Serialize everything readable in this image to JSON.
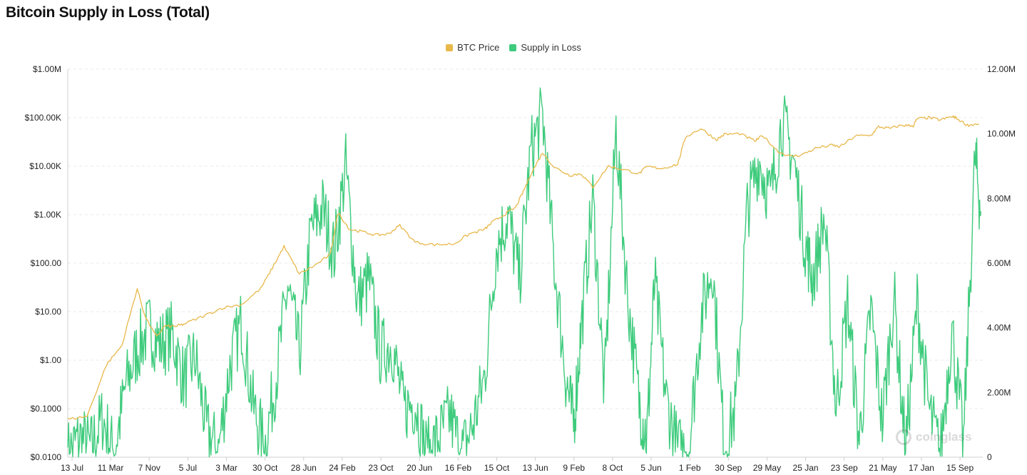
{
  "chart_data": {
    "type": "line",
    "title": "Bitcoin Supply in Loss (Total)",
    "legend_position": "top-center",
    "grid": true,
    "x_ticks": [
      "13 Jul",
      "11 Mar",
      "7 Nov",
      "5 Jul",
      "3 Mar",
      "30 Oct",
      "28 Jun",
      "24 Feb",
      "23 Oct",
      "20 Jun",
      "16 Feb",
      "15 Oct",
      "13 Jun",
      "9 Feb",
      "8 Oct",
      "5 Jun",
      "1 Feb",
      "30 Sep",
      "29 May",
      "25 Jan",
      "23 Sep",
      "21 May",
      "17 Jan",
      "15 Sep"
    ],
    "y_left": {
      "scale": "log",
      "ticks": [
        "$0.0100",
        "$0.1000",
        "$1.00",
        "$10.00",
        "$100.00",
        "$1.00K",
        "$10.00K",
        "$100.00K",
        "$1.00M"
      ],
      "range": [
        0.01,
        1000000
      ]
    },
    "y_right": {
      "scale": "linear",
      "ticks": [
        "0",
        "2.00M",
        "4.00M",
        "6.00M",
        "8.00M",
        "10.00M",
        "12.00M"
      ],
      "range": [
        0,
        12000000
      ]
    },
    "series": [
      {
        "name": "BTC Price",
        "axis": "left",
        "color": "#E8B84A",
        "x_index": [
          0,
          0.5,
          1,
          1.4,
          1.8,
          2,
          2.3,
          2.5,
          2.8,
          3,
          3.5,
          4,
          4.5,
          5,
          5.3,
          5.6,
          6,
          6.4,
          6.8,
          7,
          7.3,
          7.6,
          8,
          8.3,
          8.6,
          9,
          9.5,
          10,
          10.4,
          10.8,
          11,
          11.3,
          11.6,
          11.8,
          12,
          12.3,
          12.6,
          13,
          13.3,
          13.6,
          14,
          14.4,
          14.8,
          15,
          15.4,
          15.8,
          16,
          16.4,
          16.8,
          17,
          17.4,
          17.8,
          18,
          18.4,
          18.7,
          19,
          19.4,
          19.8,
          20,
          20.4,
          20.8,
          21,
          21.3,
          21.6,
          21.9,
          22,
          22.3,
          22.6,
          22.9,
          23,
          23.3,
          23.6
        ],
        "values": [
          0.06,
          0.07,
          0.8,
          2,
          30,
          8,
          3,
          5,
          5,
          5.5,
          8,
          12,
          14,
          30,
          80,
          220,
          60,
          90,
          150,
          1100,
          500,
          450,
          380,
          400,
          600,
          270,
          240,
          250,
          400,
          500,
          700,
          1000,
          1400,
          3000,
          7000,
          19000,
          9500,
          6500,
          7000,
          3700,
          10000,
          8500,
          7000,
          9800,
          9000,
          11000,
          40000,
          60000,
          35000,
          45000,
          47000,
          33000,
          43000,
          20000,
          16000,
          17000,
          24000,
          27000,
          25000,
          42000,
          43000,
          65000,
          60000,
          70000,
          68000,
          95000,
          100000,
          90000,
          105000,
          100000,
          70000,
          75000
        ]
      },
      {
        "name": "Supply in Loss",
        "axis": "right",
        "color": "#3ECB7C",
        "x_index": [
          0,
          0.3,
          0.6,
          0.9,
          1.2,
          1.5,
          1.8,
          2.1,
          2.4,
          2.7,
          3,
          3.3,
          3.6,
          3.9,
          4.2,
          4.5,
          4.8,
          5.1,
          5.4,
          5.7,
          6,
          6.3,
          6.6,
          6.9,
          7.2,
          7.5,
          7.8,
          8.1,
          8.4,
          8.7,
          9,
          9.3,
          9.6,
          9.9,
          10.2,
          10.5,
          10.8,
          11.1,
          11.4,
          11.7,
          12,
          12.3,
          12.6,
          12.9,
          13.1,
          13.3,
          13.6,
          13.9,
          14.2,
          14.5,
          14.8,
          15,
          15.2,
          15.5,
          15.8,
          16.1,
          16.4,
          16.7,
          17,
          17.3,
          17.6,
          17.9,
          18.2,
          18.5,
          18.8,
          19.1,
          19.3,
          19.6,
          19.9,
          20.2,
          20.5,
          20.8,
          21.1,
          21.4,
          21.7,
          22,
          22.3,
          22.6,
          22.9,
          23.2,
          23.5,
          23.65
        ],
        "values": [
          0.1,
          0.6,
          0.3,
          1.2,
          0.1,
          2.2,
          3.3,
          4,
          3.5,
          3.8,
          2.4,
          3.1,
          0.8,
          0.2,
          2.8,
          4.2,
          1.6,
          0.3,
          2.5,
          5.3,
          3.2,
          7,
          7.7,
          6.3,
          9,
          4.8,
          5.5,
          3.2,
          3.5,
          1.5,
          1.7,
          0.1,
          0.6,
          1.3,
          0.1,
          1,
          2.5,
          6.5,
          7.5,
          5.5,
          9.5,
          10.6,
          6,
          2.5,
          1,
          4,
          8,
          2,
          10.2,
          5,
          1.7,
          0.6,
          5.4,
          1.8,
          0.2,
          0.4,
          4.3,
          6,
          0.3,
          1.5,
          7.7,
          9.2,
          8,
          10.4,
          9.2,
          6.6,
          5.5,
          7.4,
          1.5,
          4.8,
          0.5,
          4.6,
          1.1,
          5,
          0.2,
          4.8,
          1.5,
          0.1,
          4,
          0.4,
          9.3,
          7.6
        ]
      }
    ]
  }
}
